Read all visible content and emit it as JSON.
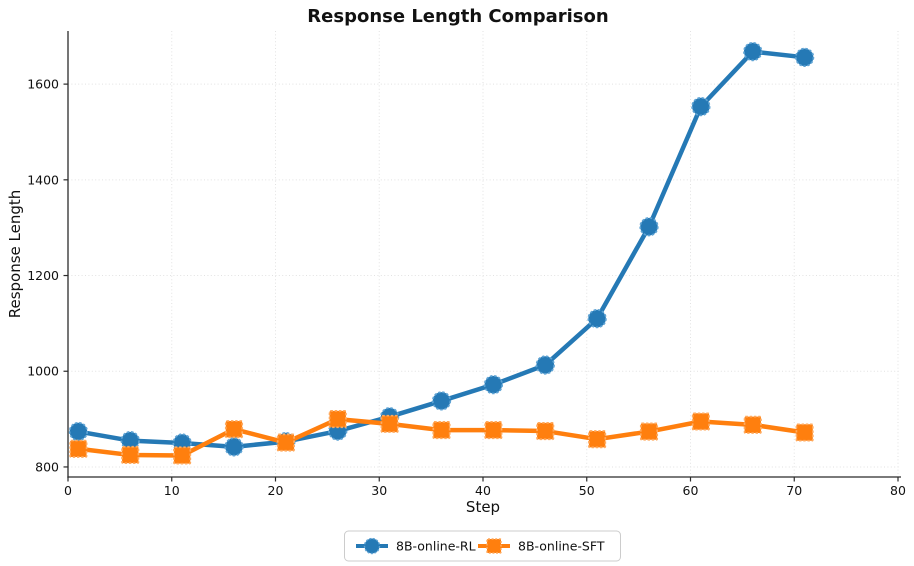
{
  "chart_data": {
    "type": "line",
    "title": "Response Length Comparison",
    "xlabel": "Step",
    "ylabel": "Response Length",
    "x": [
      1,
      6,
      11,
      16,
      21,
      26,
      31,
      36,
      41,
      46,
      51,
      56,
      61,
      66,
      71
    ],
    "series": [
      {
        "name": "8B-online-RL",
        "marker": "circle",
        "color": "#2579b5",
        "marker_edge": "#5ea3d4",
        "values": [
          874,
          855,
          850,
          842,
          853,
          875,
          905,
          938,
          972,
          1013,
          1110,
          1302,
          1553,
          1668,
          1656
        ]
      },
      {
        "name": "8B-online-SFT",
        "marker": "square",
        "color": "#ff7f0e",
        "marker_edge": "#ffaa5e",
        "values": [
          838,
          825,
          824,
          879,
          851,
          900,
          890,
          877,
          877,
          875,
          858,
          874,
          895,
          888,
          872
        ]
      }
    ],
    "xlim": [
      0,
      80
    ],
    "ylim": [
      779,
      1711
    ],
    "xticks": [
      0,
      10,
      20,
      30,
      40,
      50,
      60,
      70,
      80
    ],
    "yticks": [
      800,
      1000,
      1200,
      1400,
      1600
    ],
    "grid": true,
    "legend_position": "bottom-center"
  }
}
